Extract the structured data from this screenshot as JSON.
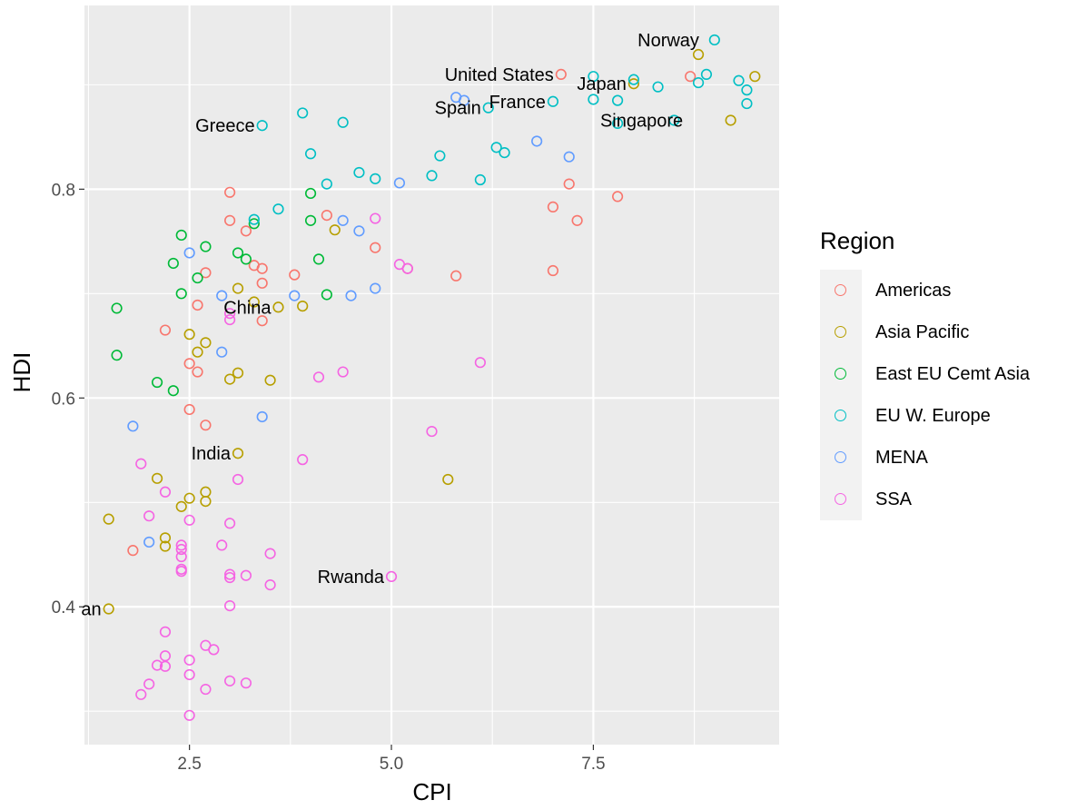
{
  "chart_data": {
    "type": "scatter",
    "xlabel": "CPI",
    "ylabel": "HDI",
    "xlim": [
      1.2,
      9.8
    ],
    "ylim": [
      0.268,
      0.976
    ],
    "x_ticks": [
      2.5,
      5.0,
      7.5
    ],
    "x_tick_labels": [
      "2.5",
      "5.0",
      "7.5"
    ],
    "y_ticks": [
      0.4,
      0.6,
      0.8
    ],
    "y_tick_labels": [
      "0.4",
      "0.6",
      "0.8"
    ],
    "grid": true,
    "legend": {
      "title": "Region",
      "placement": "right",
      "entries": [
        {
          "name": "Americas",
          "color": "#F8766D"
        },
        {
          "name": "Asia Pacific",
          "color": "#B79F00"
        },
        {
          "name": "East EU Cemt Asia",
          "color": "#00BA38"
        },
        {
          "name": "EU W. Europe",
          "color": "#00BFC4"
        },
        {
          "name": "MENA",
          "color": "#619CFF"
        },
        {
          "name": "SSA",
          "color": "#F564E3"
        }
      ]
    },
    "annotations": [
      {
        "text": "Norway",
        "x": 8.9,
        "y": 0.943
      },
      {
        "text": "United States",
        "x": 7.1,
        "y": 0.91
      },
      {
        "text": "Japan",
        "x": 8.0,
        "y": 0.901
      },
      {
        "text": "France",
        "x": 7.0,
        "y": 0.884
      },
      {
        "text": "Spain",
        "x": 6.2,
        "y": 0.878
      },
      {
        "text": "Singapore",
        "x": 8.7,
        "y": 0.866
      },
      {
        "text": "Greece",
        "x": 3.4,
        "y": 0.861
      },
      {
        "text": "China",
        "x": 3.6,
        "y": 0.687
      },
      {
        "text": "India",
        "x": 3.1,
        "y": 0.547
      },
      {
        "text": "Rwanda",
        "x": 5.0,
        "y": 0.429
      },
      {
        "text": "an",
        "x": 1.5,
        "y": 0.398
      }
    ],
    "series": [
      {
        "name": "Americas",
        "points": [
          [
            7.1,
            0.91
          ],
          [
            8.7,
            0.908
          ],
          [
            7.2,
            0.805
          ],
          [
            7.8,
            0.793
          ],
          [
            7.0,
            0.783
          ],
          [
            7.3,
            0.77
          ],
          [
            7.0,
            0.722
          ],
          [
            5.8,
            0.717
          ],
          [
            5.2,
            0.724
          ],
          [
            4.8,
            0.744
          ],
          [
            4.2,
            0.775
          ],
          [
            3.8,
            0.718
          ],
          [
            3.4,
            0.724
          ],
          [
            3.3,
            0.727
          ],
          [
            3.4,
            0.71
          ],
          [
            3.4,
            0.674
          ],
          [
            3.0,
            0.797
          ],
          [
            3.0,
            0.77
          ],
          [
            3.2,
            0.76
          ],
          [
            2.7,
            0.72
          ],
          [
            2.6,
            0.689
          ],
          [
            2.2,
            0.665
          ],
          [
            2.5,
            0.633
          ],
          [
            2.6,
            0.625
          ],
          [
            2.5,
            0.589
          ],
          [
            2.7,
            0.574
          ],
          [
            1.8,
            0.454
          ]
        ]
      },
      {
        "name": "Asia Pacific",
        "points": [
          [
            9.5,
            0.908
          ],
          [
            8.8,
            0.929
          ],
          [
            9.2,
            0.866
          ],
          [
            8.0,
            0.901
          ],
          [
            4.3,
            0.761
          ],
          [
            3.1,
            0.705
          ],
          [
            3.3,
            0.692
          ],
          [
            3.6,
            0.687
          ],
          [
            3.9,
            0.688
          ],
          [
            2.5,
            0.661
          ],
          [
            2.7,
            0.653
          ],
          [
            2.6,
            0.644
          ],
          [
            3.1,
            0.624
          ],
          [
            3.0,
            0.618
          ],
          [
            3.5,
            0.617
          ],
          [
            3.1,
            0.547
          ],
          [
            5.7,
            0.522
          ],
          [
            2.1,
            0.523
          ],
          [
            2.7,
            0.51
          ],
          [
            2.5,
            0.504
          ],
          [
            2.7,
            0.501
          ],
          [
            2.4,
            0.496
          ],
          [
            1.5,
            0.484
          ],
          [
            2.2,
            0.466
          ],
          [
            2.2,
            0.458
          ],
          [
            1.5,
            0.398
          ]
        ]
      },
      {
        "name": "East EU Cemt Asia",
        "points": [
          [
            1.6,
            0.686
          ],
          [
            1.6,
            0.641
          ],
          [
            2.4,
            0.756
          ],
          [
            2.7,
            0.745
          ],
          [
            2.3,
            0.729
          ],
          [
            2.4,
            0.7
          ],
          [
            2.6,
            0.715
          ],
          [
            3.1,
            0.739
          ],
          [
            3.2,
            0.733
          ],
          [
            3.3,
            0.767
          ],
          [
            4.0,
            0.796
          ],
          [
            4.0,
            0.77
          ],
          [
            4.1,
            0.733
          ],
          [
            4.2,
            0.699
          ],
          [
            2.1,
            0.615
          ],
          [
            2.3,
            0.607
          ]
        ]
      },
      {
        "name": "EU W. Europe",
        "points": [
          [
            9.0,
            0.943
          ],
          [
            8.9,
            0.91
          ],
          [
            9.3,
            0.904
          ],
          [
            9.4,
            0.895
          ],
          [
            9.4,
            0.882
          ],
          [
            8.8,
            0.902
          ],
          [
            8.3,
            0.898
          ],
          [
            8.0,
            0.905
          ],
          [
            7.5,
            0.908
          ],
          [
            7.5,
            0.886
          ],
          [
            7.8,
            0.885
          ],
          [
            7.8,
            0.863
          ],
          [
            8.5,
            0.866
          ],
          [
            7.0,
            0.884
          ],
          [
            6.2,
            0.878
          ],
          [
            3.4,
            0.861
          ],
          [
            3.9,
            0.873
          ],
          [
            4.4,
            0.864
          ],
          [
            4.0,
            0.834
          ],
          [
            5.6,
            0.832
          ],
          [
            6.3,
            0.84
          ],
          [
            6.4,
            0.835
          ],
          [
            4.6,
            0.816
          ],
          [
            4.8,
            0.81
          ],
          [
            5.5,
            0.813
          ],
          [
            6.1,
            0.809
          ],
          [
            4.2,
            0.805
          ],
          [
            3.6,
            0.781
          ],
          [
            3.3,
            0.771
          ]
        ]
      },
      {
        "name": "MENA",
        "points": [
          [
            5.8,
            0.888
          ],
          [
            5.9,
            0.885
          ],
          [
            6.8,
            0.846
          ],
          [
            7.2,
            0.831
          ],
          [
            5.1,
            0.806
          ],
          [
            4.4,
            0.77
          ],
          [
            4.6,
            0.76
          ],
          [
            2.5,
            0.739
          ],
          [
            2.9,
            0.698
          ],
          [
            3.8,
            0.698
          ],
          [
            4.5,
            0.698
          ],
          [
            4.8,
            0.705
          ],
          [
            2.9,
            0.644
          ],
          [
            3.4,
            0.582
          ],
          [
            1.8,
            0.573
          ],
          [
            2.0,
            0.462
          ]
        ]
      },
      {
        "name": "SSA",
        "points": [
          [
            4.8,
            0.772
          ],
          [
            5.1,
            0.728
          ],
          [
            5.2,
            0.724
          ],
          [
            3.0,
            0.681
          ],
          [
            3.0,
            0.675
          ],
          [
            4.4,
            0.625
          ],
          [
            4.1,
            0.62
          ],
          [
            6.1,
            0.634
          ],
          [
            5.5,
            0.568
          ],
          [
            3.9,
            0.541
          ],
          [
            1.9,
            0.537
          ],
          [
            3.1,
            0.522
          ],
          [
            2.2,
            0.51
          ],
          [
            2.0,
            0.487
          ],
          [
            2.5,
            0.483
          ],
          [
            3.0,
            0.48
          ],
          [
            2.4,
            0.459
          ],
          [
            2.4,
            0.455
          ],
          [
            2.4,
            0.448
          ],
          [
            2.9,
            0.459
          ],
          [
            3.5,
            0.451
          ],
          [
            2.4,
            0.436
          ],
          [
            2.4,
            0.434
          ],
          [
            3.0,
            0.431
          ],
          [
            3.0,
            0.428
          ],
          [
            3.2,
            0.43
          ],
          [
            3.5,
            0.421
          ],
          [
            5.0,
            0.429
          ],
          [
            3.0,
            0.401
          ],
          [
            2.2,
            0.376
          ],
          [
            2.7,
            0.363
          ],
          [
            2.8,
            0.359
          ],
          [
            2.2,
            0.353
          ],
          [
            2.5,
            0.349
          ],
          [
            2.1,
            0.344
          ],
          [
            2.2,
            0.343
          ],
          [
            2.5,
            0.335
          ],
          [
            3.0,
            0.329
          ],
          [
            3.2,
            0.327
          ],
          [
            2.0,
            0.326
          ],
          [
            2.7,
            0.321
          ],
          [
            1.9,
            0.316
          ],
          [
            2.5,
            0.296
          ]
        ]
      }
    ]
  }
}
